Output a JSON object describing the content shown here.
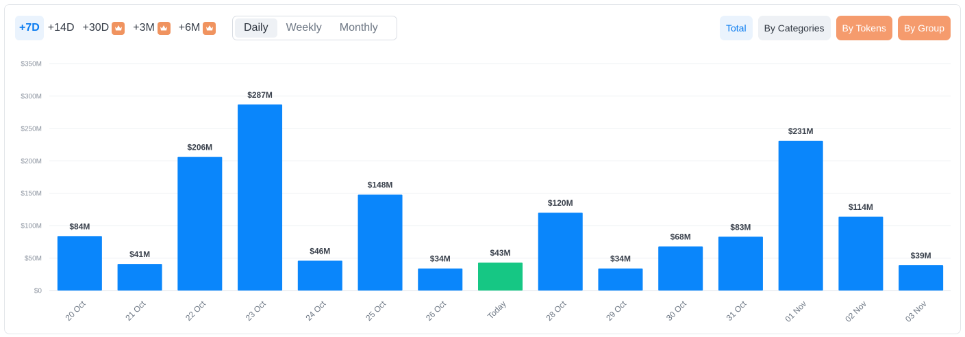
{
  "toolbar": {
    "ranges": [
      {
        "label": "+7D",
        "active": true,
        "premium": false
      },
      {
        "label": "+14D",
        "active": false,
        "premium": false
      },
      {
        "label": "+30D",
        "active": false,
        "premium": true
      },
      {
        "label": "+3M",
        "active": false,
        "premium": true
      },
      {
        "label": "+6M",
        "active": false,
        "premium": true
      }
    ],
    "premium_icon": "crown-icon",
    "periods": [
      {
        "label": "Daily",
        "active": true
      },
      {
        "label": "Weekly",
        "active": false
      },
      {
        "label": "Monthly",
        "active": false
      }
    ],
    "views": [
      {
        "label": "Total",
        "style": "total"
      },
      {
        "label": "By Categories",
        "style": "cats"
      },
      {
        "label": "By Tokens",
        "style": "premium"
      },
      {
        "label": "By Group",
        "style": "premium"
      }
    ]
  },
  "colors": {
    "bar": "#0a86fb",
    "today_bar": "#16c784",
    "today_label": "#16c784",
    "grid": "#edf0f3",
    "accent": "#0a7cf0",
    "premium": "#f59b6d"
  },
  "chart_data": {
    "type": "bar",
    "categories": [
      "20 Oct",
      "21 Oct",
      "22 Oct",
      "23 Oct",
      "24 Oct",
      "25 Oct",
      "26 Oct",
      "Today",
      "28 Oct",
      "29 Oct",
      "30 Oct",
      "31 Oct",
      "01 Nov",
      "02 Nov",
      "03 Nov"
    ],
    "values": [
      84,
      41,
      206,
      287,
      46,
      148,
      34,
      43,
      120,
      34,
      68,
      83,
      231,
      114,
      39
    ],
    "value_labels": [
      "$84M",
      "$41M",
      "$206M",
      "$287M",
      "$46M",
      "$148M",
      "$34M",
      "$43M",
      "$120M",
      "$34M",
      "$68M",
      "$83M",
      "$231M",
      "$114M",
      "$39M"
    ],
    "highlight_category": "Today",
    "yticks": [
      0,
      50,
      100,
      150,
      200,
      250,
      300,
      350
    ],
    "ytick_labels": [
      "$0",
      "$50M",
      "$100M",
      "$150M",
      "$200M",
      "$250M",
      "$300M",
      "$350M"
    ],
    "ylim": [
      0,
      350
    ],
    "grid": true,
    "legend": "none",
    "unit": "$M"
  }
}
